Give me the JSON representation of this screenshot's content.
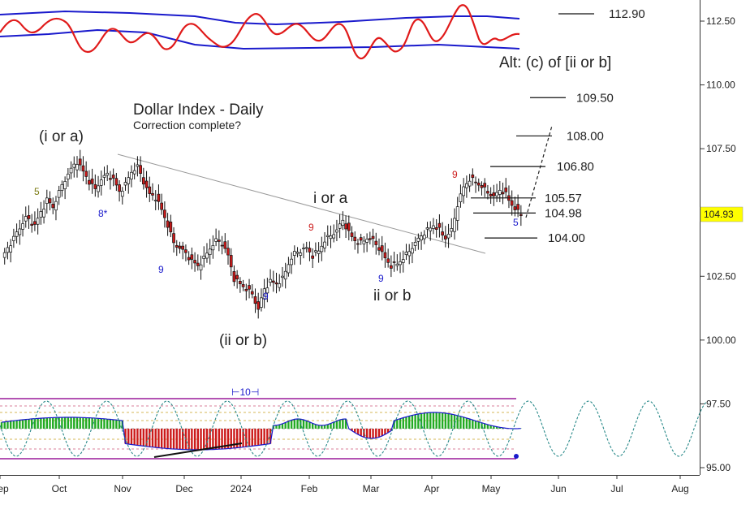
{
  "chart_data": {
    "type": "candlestick",
    "title": "Dollar Index - Daily",
    "subtitle": "Correction complete?",
    "y_axis": {
      "ticks": [
        95.0,
        97.5,
        100.0,
        102.5,
        105.0,
        107.5,
        110.0,
        112.5
      ],
      "tick_labels": [
        "95.00",
        "97.50",
        "100.00",
        "102.50",
        "105.00",
        "107.50",
        "110.00",
        "112.50"
      ],
      "position": "right",
      "range": [
        94.6,
        113.2
      ]
    },
    "x_axis": {
      "labels": [
        "Sep",
        "Oct",
        "Nov",
        "Dec",
        "2024",
        "Feb",
        "Mar",
        "Apr",
        "May",
        "Jun",
        "Jul",
        "Aug"
      ]
    },
    "last_price": {
      "value": 104.93,
      "label": "104.93"
    },
    "price_path": [
      [
        0,
        103.2
      ],
      [
        4,
        104.0
      ],
      [
        8,
        104.8
      ],
      [
        11,
        104.5
      ],
      [
        13,
        105.0
      ],
      [
        15,
        105.5
      ],
      [
        17,
        105.2
      ],
      [
        19,
        105.8
      ],
      [
        21,
        106.3
      ],
      [
        23,
        106.7
      ],
      [
        25,
        107.0
      ],
      [
        27,
        106.6
      ],
      [
        29,
        106.2
      ],
      [
        31,
        105.9
      ],
      [
        33,
        106.3
      ],
      [
        35,
        106.5
      ],
      [
        37,
        106.3
      ],
      [
        39,
        105.8
      ],
      [
        41,
        106.1
      ],
      [
        43,
        106.6
      ],
      [
        45,
        106.8
      ],
      [
        47,
        106.2
      ],
      [
        49,
        105.7
      ],
      [
        51,
        105.6
      ],
      [
        53,
        105.1
      ],
      [
        55,
        104.5
      ],
      [
        57,
        103.8
      ],
      [
        59,
        103.6
      ],
      [
        61,
        103.4
      ],
      [
        63,
        103.1
      ],
      [
        65,
        102.9
      ],
      [
        67,
        103.2
      ],
      [
        69,
        103.6
      ],
      [
        71,
        103.9
      ],
      [
        73,
        103.8
      ],
      [
        75,
        103.3
      ],
      [
        77,
        102.4
      ],
      [
        79,
        102.2
      ],
      [
        81,
        102.0
      ],
      [
        83,
        101.8
      ],
      [
        85,
        101.2
      ],
      [
        87,
        102.0
      ],
      [
        89,
        102.3
      ],
      [
        91,
        102.2
      ],
      [
        93,
        102.4
      ],
      [
        95,
        103.0
      ],
      [
        97,
        103.4
      ],
      [
        99,
        103.5
      ],
      [
        101,
        103.6
      ],
      [
        103,
        103.3
      ],
      [
        105,
        103.5
      ],
      [
        107,
        103.9
      ],
      [
        109,
        104.1
      ],
      [
        111,
        104.3
      ],
      [
        113,
        104.7
      ],
      [
        115,
        104.2
      ],
      [
        117,
        103.9
      ],
      [
        119,
        103.8
      ],
      [
        121,
        104.0
      ],
      [
        123,
        103.9
      ],
      [
        125,
        103.6
      ],
      [
        127,
        103.2
      ],
      [
        129,
        102.9
      ],
      [
        131,
        103.0
      ],
      [
        133,
        103.2
      ],
      [
        135,
        103.5
      ],
      [
        137,
        103.8
      ],
      [
        139,
        104.1
      ],
      [
        141,
        104.3
      ],
      [
        143,
        104.5
      ],
      [
        145,
        104.3
      ],
      [
        147,
        104.0
      ],
      [
        149,
        104.3
      ],
      [
        151,
        105.3
      ],
      [
        153,
        106.0
      ],
      [
        155,
        106.3
      ],
      [
        157,
        106.2
      ],
      [
        159,
        106.0
      ],
      [
        161,
        105.8
      ],
      [
        163,
        105.6
      ],
      [
        165,
        105.9
      ],
      [
        167,
        105.7
      ],
      [
        169,
        105.3
      ],
      [
        171,
        105.0
      ],
      [
        172,
        104.93
      ]
    ],
    "levels": [
      {
        "label": "112.90",
        "value": 112.9
      },
      {
        "label": "109.50",
        "value": 109.5
      },
      {
        "label": "108.00",
        "value": 108.0
      },
      {
        "label": "106.80",
        "value": 106.8
      },
      {
        "label": "105.57",
        "value": 105.57
      },
      {
        "label": "104.98",
        "value": 104.98
      },
      {
        "label": "104.00",
        "value": 104.0
      }
    ],
    "wave_labels": [
      "(i or a)",
      "(ii or b)",
      "i or a",
      "ii or b",
      "Alt: (c) of [ii or b]"
    ],
    "count_labels": [
      "5",
      "8*",
      "9",
      "9",
      "9",
      "9",
      "9",
      "9",
      "5"
    ],
    "cycle_marker": "10",
    "colors": {
      "candle_up": "#ffffff",
      "candle_down": "#cc1a1a",
      "candle_outline": "#111111",
      "oscillator": "#e01a1a",
      "bands": "#1a1acc",
      "histogram_up": "#22aa22",
      "histogram_down": "#cc1a1a",
      "cycle_wave": "#2a8a8a",
      "last_price_bg": "#ffff00",
      "lower_frame": "#9a1a9a"
    }
  }
}
